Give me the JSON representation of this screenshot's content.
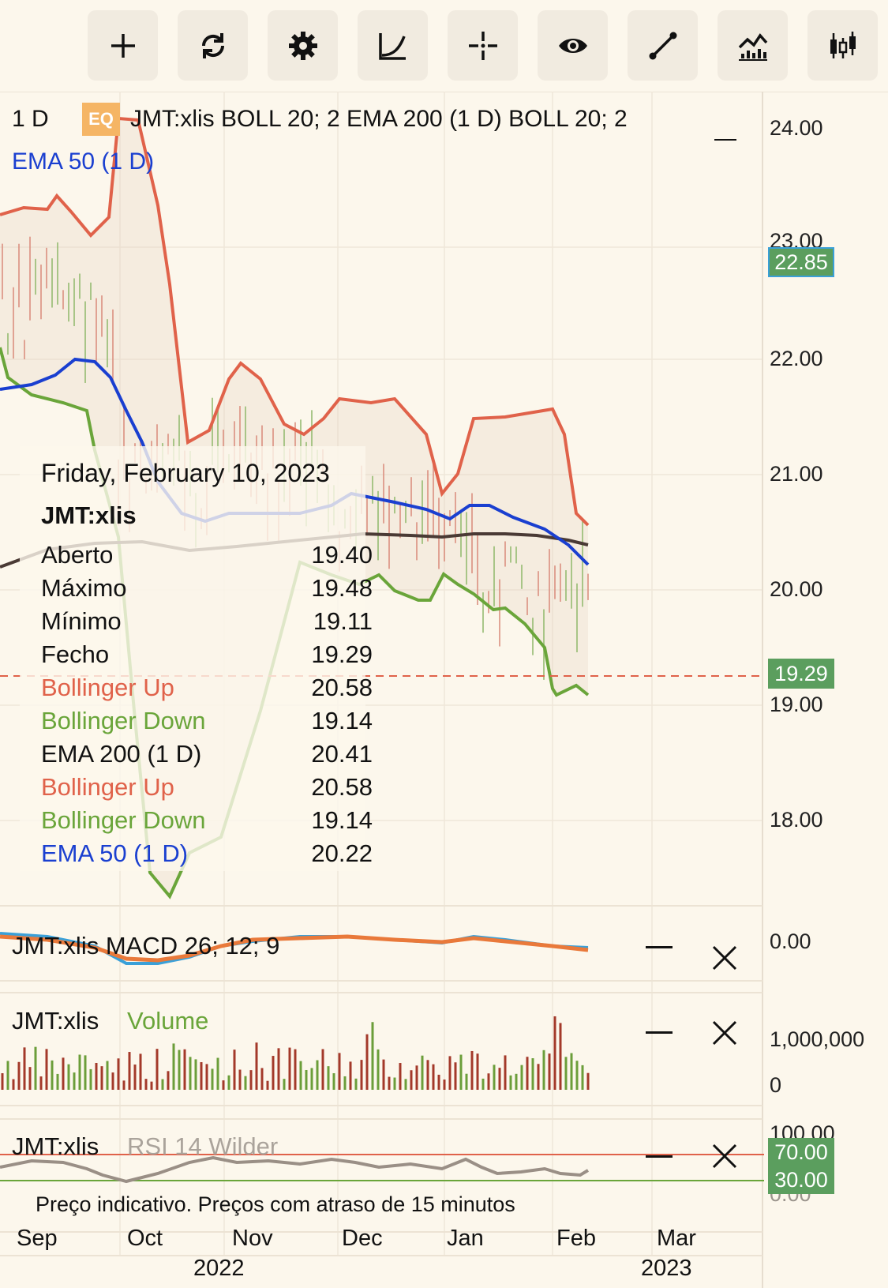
{
  "toolbar": {
    "buttons": [
      {
        "name": "add-button",
        "icon": "plus-icon"
      },
      {
        "name": "refresh-button",
        "icon": "refresh-icon"
      },
      {
        "name": "settings-button",
        "icon": "gear-icon"
      },
      {
        "name": "indicators-button",
        "icon": "curve-icon"
      },
      {
        "name": "crosshair-button",
        "icon": "crosshair-icon"
      },
      {
        "name": "visibility-button",
        "icon": "eye-icon"
      },
      {
        "name": "drawing-button",
        "icon": "line-draw-icon"
      },
      {
        "name": "compare-button",
        "icon": "chart-compare-icon"
      },
      {
        "name": "chart-type-button",
        "icon": "candlestick-icon"
      }
    ]
  },
  "header": {
    "interval": "1 D",
    "badge": "EQ",
    "legend": "JMT:xlis  BOLL 20; 2  EMA 200 (1 D)  BOLL 20; 2",
    "legend2": "EMA 50 (1 D)"
  },
  "price_axis": {
    "labels": [
      "24.00",
      "23.00",
      "22.00",
      "21.00",
      "20.00",
      "19.00",
      "18.00"
    ],
    "tag_high": "22.85",
    "tag_last": "19.29"
  },
  "tooltip": {
    "date": "Friday, February 10, 2023",
    "symbol": "JMT:xlis",
    "rows": [
      {
        "label": "Aberto",
        "value": "19.40",
        "color": "#111111"
      },
      {
        "label": "Máximo",
        "value": "19.48",
        "color": "#111111"
      },
      {
        "label": "Mínimo",
        "value": "19.11",
        "color": "#111111"
      },
      {
        "label": "Fecho",
        "value": "19.29",
        "color": "#111111"
      },
      {
        "label": "Bollinger Up",
        "value": "20.58",
        "color": "#e0624a"
      },
      {
        "label": "Bollinger Down",
        "value": "19.14",
        "color": "#6aa53a"
      },
      {
        "label": "EMA 200 (1 D)",
        "value": "20.41",
        "color": "#111111"
      },
      {
        "label": "Bollinger Up",
        "value": "20.58",
        "color": "#e0624a"
      },
      {
        "label": "Bollinger Down",
        "value": "19.14",
        "color": "#6aa53a"
      },
      {
        "label": "EMA 50 (1 D)",
        "value": "20.22",
        "color": "#1a3fd0"
      }
    ]
  },
  "macd_pane": {
    "label": "JMT:xlis  MACD 26; 12; 9",
    "axis": "0.00"
  },
  "volume_pane": {
    "symbol": "JMT:xlis",
    "label": "Volume",
    "axis_top": "1,000,000",
    "axis_bottom": "0"
  },
  "rsi_pane": {
    "symbol": "JMT:xlis",
    "label": "RSI 14 Wilder",
    "axis_top": "100.00",
    "tag_upper": "70.00",
    "tag_lower": "30.00",
    "axis_bottom": "0.00"
  },
  "footer": {
    "note": "Preço indicativo. Preços com atraso de 15 minutos",
    "months": [
      "Sep",
      "Oct",
      "Nov",
      "Dec",
      "Jan",
      "Feb",
      "Mar"
    ],
    "years": [
      "2022",
      "2023"
    ]
  },
  "colors": {
    "boll_up": "#e0624a",
    "boll_down": "#6aa53a",
    "ema50": "#1a3fd0",
    "ema200": "#4a3a35",
    "tag_green": "#5b9e5e",
    "tag_red": "#e0624a",
    "macd": "#e9793a",
    "signal": "#3aa0d8"
  }
}
